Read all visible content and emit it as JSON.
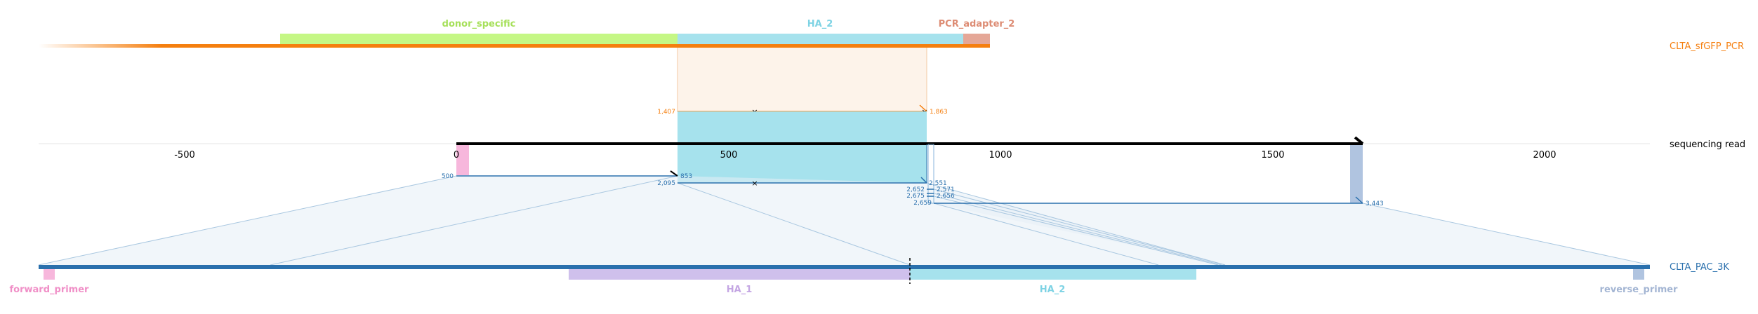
{
  "top_construct": {
    "name": "CLTA_sfGFP_PCR",
    "color": "#f57f0f",
    "features": [
      {
        "key": "donor_specific",
        "label": "donor_specific",
        "color": "#c5f785",
        "label_color": "#a6e05a"
      },
      {
        "key": "ha2_top",
        "label": "HA_2",
        "color": "#a6e2ed",
        "label_color": "#7ed3e4"
      },
      {
        "key": "pcr_adapter",
        "label": "PCR_adapter_2",
        "color": "#e5a797",
        "label_color": "#dd8c74"
      }
    ],
    "alignment": {
      "start_label": "1,407",
      "end_label": "1,863"
    }
  },
  "read": {
    "name": "sequencing read",
    "axis_ticks": [
      "-500",
      "0",
      "500",
      "1000",
      "1500",
      "2000"
    ],
    "end_label": "3,443"
  },
  "bottom_construct": {
    "name": "CLTA_PAC_3K",
    "color": "#2a70ad",
    "features": [
      {
        "key": "forward_primer",
        "label": "forward_primer",
        "color": "#f7b7dc",
        "label_color": "#f08fc7"
      },
      {
        "key": "ha1",
        "label": "HA_1",
        "color": "#cfc0ec",
        "label_color": "#c4a6e3"
      },
      {
        "key": "ha2_bottom",
        "label": "HA_2",
        "color": "#a6e2ed",
        "label_color": "#7ed3e4"
      },
      {
        "key": "reverse_primer",
        "label": "reverse_primer",
        "color": "#b0c4e0",
        "label_color": "#a3b5d3"
      }
    ],
    "alignment_labels": [
      "500",
      "853",
      "2,095",
      "2,551",
      "2,571",
      "2,652",
      "2,656",
      "2,675",
      "2,659"
    ]
  }
}
